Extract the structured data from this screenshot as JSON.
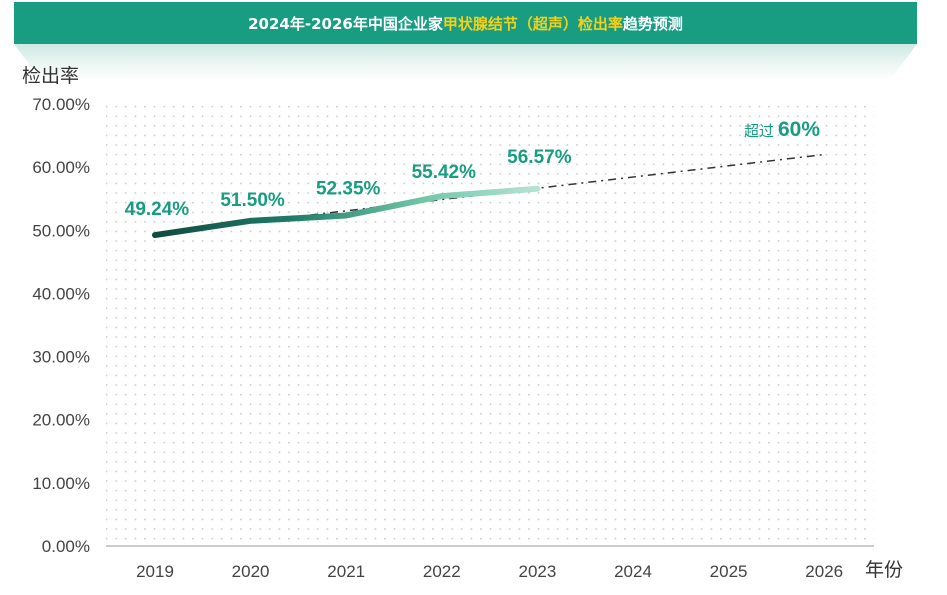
{
  "title": {
    "part1": "2024年-2026年中国企业家",
    "part2": "甲状腺结节（超声）检出率",
    "part3": "趋势预测"
  },
  "chart_data": {
    "type": "line",
    "ylabel": "检出率",
    "xlabel": "年份",
    "ylim": [
      0,
      70
    ],
    "yticks": [
      "0.00%",
      "10.00%",
      "20.00%",
      "30.00%",
      "40.00%",
      "50.00%",
      "60.00%",
      "70.00%"
    ],
    "ytick_values": [
      0,
      10,
      20,
      30,
      40,
      50,
      60,
      70
    ],
    "categories": [
      "2019",
      "2020",
      "2021",
      "2022",
      "2023",
      "2024",
      "2025",
      "2026"
    ],
    "series": [
      {
        "style": "solid",
        "x": [
          "2019",
          "2020",
          "2021",
          "2022",
          "2023"
        ],
        "values": [
          49.24,
          51.5,
          52.35,
          55.42,
          56.57
        ],
        "labels": [
          "49.24%",
          "51.50%",
          "52.35%",
          "55.42%",
          "56.57%"
        ]
      },
      {
        "style": "dash-dot",
        "x": [
          "2020",
          "2026"
        ],
        "values": [
          51.3,
          62.0
        ]
      }
    ],
    "annotation": {
      "prefix": "超过",
      "value": "60%",
      "x": "2026"
    },
    "grid": true,
    "colors": {
      "accent": "#189c82",
      "title_highlight": "#f2d11c",
      "line_start": "#0f4a3f",
      "line_end": "#a8dacb",
      "trend": "#333333",
      "grid": "#cccccc"
    }
  }
}
